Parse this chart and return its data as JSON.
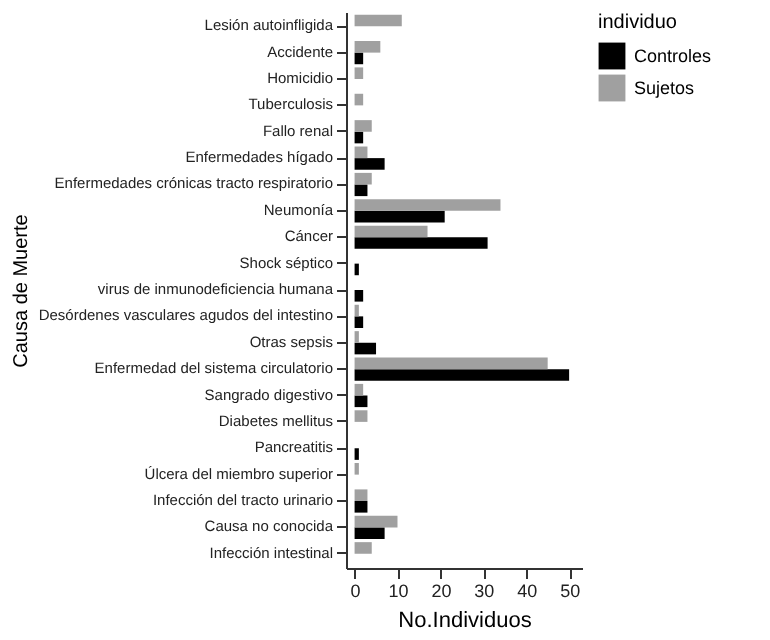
{
  "chart_data": {
    "type": "bar",
    "orientation": "horizontal",
    "xlabel": "No.Individuos",
    "ylabel": "Causa de Muerte",
    "legend_title": "individuo",
    "legend": "right",
    "grid": false,
    "categories": [
      "Lesión autoinfligida",
      "Accidente",
      "Homicidio",
      "Tuberculosis",
      "Fallo renal",
      "Enfermedades hígado",
      "Enfermedades crónicas tracto respiratorio",
      "Neumonía",
      "Cáncer",
      "Shock séptico",
      "virus de inmunodeficiencia humana",
      "Desórdenes vasculares agudos del intestino",
      "Otras sepsis",
      "Enfermedad del sistema circulatorio",
      "Sangrado digestivo",
      "Diabetes mellitus",
      "Pancreatitis",
      "Úlcera del miembro superior",
      "Infección del tracto urinario",
      "Causa no conocida",
      "Infección intestinal"
    ],
    "series": [
      {
        "name": "Controles",
        "color": "#000000",
        "values": [
          null,
          2,
          null,
          null,
          2,
          7,
          3,
          21,
          31,
          1,
          2,
          2,
          5,
          50,
          3,
          null,
          1,
          null,
          3,
          7,
          null
        ]
      },
      {
        "name": "Sujetos",
        "color": "#a0a0a0",
        "values": [
          11,
          6,
          2,
          2,
          4,
          3,
          4,
          34,
          17,
          null,
          null,
          1,
          1,
          45,
          2,
          3,
          null,
          1,
          3,
          10,
          4
        ]
      }
    ],
    "xlim": [
      -2,
      53
    ],
    "xticks": [
      0,
      10,
      20,
      30,
      40,
      50
    ]
  }
}
